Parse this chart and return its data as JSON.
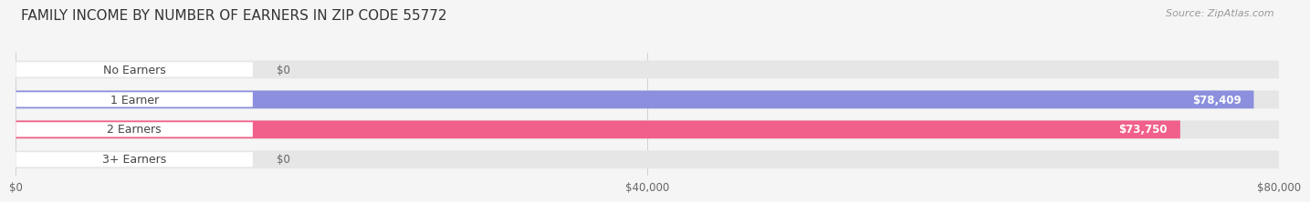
{
  "title": "FAMILY INCOME BY NUMBER OF EARNERS IN ZIP CODE 55772",
  "source": "Source: ZipAtlas.com",
  "categories": [
    "No Earners",
    "1 Earner",
    "2 Earners",
    "3+ Earners"
  ],
  "values": [
    0,
    78409,
    73750,
    0
  ],
  "bar_colors": [
    "#5dd3c8",
    "#8b8fdd",
    "#f0608a",
    "#f0c898"
  ],
  "value_labels": [
    "$0",
    "$78,409",
    "$73,750",
    "$0"
  ],
  "xlim": [
    0,
    80000
  ],
  "xticks": [
    0,
    40000,
    80000
  ],
  "xtick_labels": [
    "$0",
    "$40,000",
    "$80,000"
  ],
  "background_color": "#f5f5f5",
  "bar_background_color": "#e6e6e6",
  "title_fontsize": 11,
  "source_fontsize": 8,
  "label_fontsize": 9,
  "value_fontsize": 8.5
}
